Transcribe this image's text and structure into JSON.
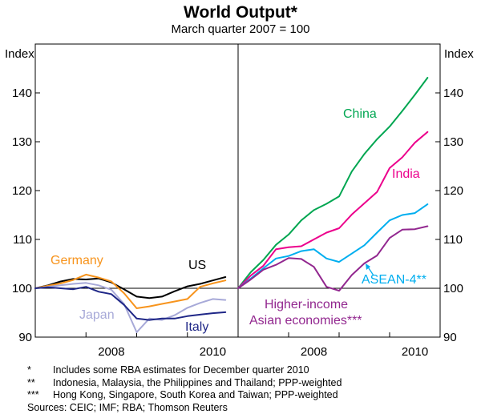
{
  "title": "World Output*",
  "subtitle": "March quarter 2007 = 100",
  "y_axis_label_left": "Index",
  "y_axis_label_right": "Index",
  "chart_data": [
    {
      "type": "line",
      "panel": "left",
      "ylim": [
        90,
        150
      ],
      "yticks": [
        90,
        100,
        110,
        120,
        130,
        140
      ],
      "x_range": [
        2007.0,
        2011.0
      ],
      "xtick_labels": [
        "2008",
        "2010"
      ],
      "xtick_label_positions": [
        2008.5,
        2010.5
      ],
      "series": [
        {
          "name": "US",
          "color": "#000000",
          "x": [
            2007.0,
            2007.25,
            2007.5,
            2007.75,
            2008.0,
            2008.25,
            2008.5,
            2008.75,
            2009.0,
            2009.25,
            2009.5,
            2009.75,
            2010.0,
            2010.25,
            2010.5,
            2010.75
          ],
          "y": [
            100,
            100.6,
            101.4,
            101.9,
            101.8,
            102.0,
            101.2,
            99.8,
            98.3,
            98.0,
            98.3,
            99.4,
            100.4,
            100.9,
            101.6,
            102.3
          ]
        },
        {
          "name": "Germany",
          "color": "#f7941d",
          "x": [
            2007.0,
            2007.25,
            2007.5,
            2007.75,
            2008.0,
            2008.25,
            2008.5,
            2008.75,
            2009.0,
            2009.25,
            2009.5,
            2009.75,
            2010.0,
            2010.25,
            2010.5,
            2010.75
          ],
          "y": [
            100,
            100.5,
            101.0,
            101.7,
            102.8,
            102.2,
            101.4,
            99.0,
            95.9,
            96.3,
            96.8,
            97.3,
            97.8,
            100.3,
            101.0,
            101.6
          ]
        },
        {
          "name": "Japan",
          "color": "#a7a9d8",
          "x": [
            2007.0,
            2007.25,
            2007.5,
            2007.75,
            2008.0,
            2008.25,
            2008.5,
            2008.75,
            2009.0,
            2009.25,
            2009.5,
            2009.75,
            2010.0,
            2010.25,
            2010.5,
            2010.75
          ],
          "y": [
            100,
            100.3,
            100.6,
            100.9,
            101.1,
            100.6,
            99.7,
            96.8,
            91.0,
            93.8,
            93.5,
            94.5,
            96.0,
            97.0,
            97.8,
            97.6
          ]
        },
        {
          "name": "Italy",
          "color": "#1f2787",
          "x": [
            2007.0,
            2007.25,
            2007.5,
            2007.75,
            2008.0,
            2008.25,
            2008.5,
            2008.75,
            2009.0,
            2009.25,
            2009.5,
            2009.75,
            2010.0,
            2010.25,
            2010.5,
            2010.75
          ],
          "y": [
            100,
            100.2,
            100.0,
            99.8,
            100.3,
            99.3,
            98.8,
            96.6,
            93.8,
            93.5,
            93.8,
            93.8,
            94.3,
            94.6,
            94.9,
            95.1
          ]
        }
      ],
      "labels": [
        {
          "text": "Germany",
          "series": "Germany"
        },
        {
          "text": "US",
          "series": "US"
        },
        {
          "text": "Japan",
          "series": "Japan"
        },
        {
          "text": "Italy",
          "series": "Italy"
        }
      ]
    },
    {
      "type": "line",
      "panel": "right",
      "ylim": [
        90,
        150
      ],
      "yticks": [
        90,
        100,
        110,
        120,
        130,
        140
      ],
      "x_range": [
        2007.0,
        2011.0
      ],
      "xtick_labels": [
        "2008",
        "2010"
      ],
      "xtick_label_positions": [
        2008.5,
        2010.5
      ],
      "series": [
        {
          "name": "China",
          "color": "#00a651",
          "x": [
            2007.0,
            2007.25,
            2007.5,
            2007.75,
            2008.0,
            2008.25,
            2008.5,
            2008.75,
            2009.0,
            2009.25,
            2009.5,
            2009.75,
            2010.0,
            2010.25,
            2010.5,
            2010.75
          ],
          "y": [
            100,
            103.3,
            105.8,
            108.9,
            111.0,
            113.9,
            116.0,
            117.3,
            118.8,
            123.9,
            127.5,
            130.5,
            133.1,
            136.3,
            139.6,
            143.1
          ]
        },
        {
          "name": "India",
          "color": "#ec008c",
          "x": [
            2007.0,
            2007.25,
            2007.5,
            2007.75,
            2008.0,
            2008.25,
            2008.5,
            2008.75,
            2009.0,
            2009.25,
            2009.5,
            2009.75,
            2010.0,
            2010.25,
            2010.5,
            2010.75
          ],
          "y": [
            100,
            102.6,
            104.6,
            108.0,
            108.4,
            108.6,
            110.0,
            111.4,
            112.3,
            115.1,
            117.4,
            119.7,
            124.6,
            126.8,
            129.8,
            132.0
          ]
        },
        {
          "name": "ASEAN-4**",
          "color": "#00aeef",
          "x": [
            2007.0,
            2007.25,
            2007.5,
            2007.75,
            2008.0,
            2008.25,
            2008.5,
            2008.75,
            2009.0,
            2009.25,
            2009.5,
            2009.75,
            2010.0,
            2010.25,
            2010.5,
            2010.75
          ],
          "y": [
            100,
            102.0,
            104.1,
            106.1,
            106.6,
            107.6,
            108.0,
            106.1,
            105.4,
            107.1,
            108.8,
            111.4,
            113.9,
            115.0,
            115.4,
            117.2
          ]
        },
        {
          "name": "Higher-income Asian economies***",
          "color": "#92278f",
          "x": [
            2007.0,
            2007.25,
            2007.5,
            2007.75,
            2008.0,
            2008.25,
            2008.5,
            2008.75,
            2009.0,
            2009.25,
            2009.5,
            2009.75,
            2010.0,
            2010.25,
            2010.5,
            2010.75
          ],
          "y": [
            100,
            101.8,
            103.8,
            104.8,
            106.2,
            106.0,
            104.4,
            100.3,
            99.5,
            102.7,
            105.1,
            106.7,
            110.3,
            112.0,
            112.1,
            112.7
          ]
        }
      ],
      "labels": [
        {
          "text": "China",
          "series": "China"
        },
        {
          "text": "India",
          "series": "India"
        },
        {
          "text": "ASEAN-4**",
          "series": "ASEAN-4**"
        },
        {
          "text": "Higher-income",
          "series": "Higher-income Asian economies***"
        },
        {
          "text": "Asian economies***",
          "series": "Higher-income Asian economies***"
        }
      ]
    }
  ],
  "footnotes": [
    {
      "mark": "*",
      "text": "Includes some RBA estimates for December quarter 2010"
    },
    {
      "mark": "**",
      "text": "Indonesia, Malaysia, the Philippines and Thailand; PPP-weighted"
    },
    {
      "mark": "***",
      "text": "Hong Kong, Singapore, South Korea and Taiwan; PPP-weighted"
    }
  ],
  "sources": "Sources: CEIC; IMF; RBA; Thomson Reuters"
}
